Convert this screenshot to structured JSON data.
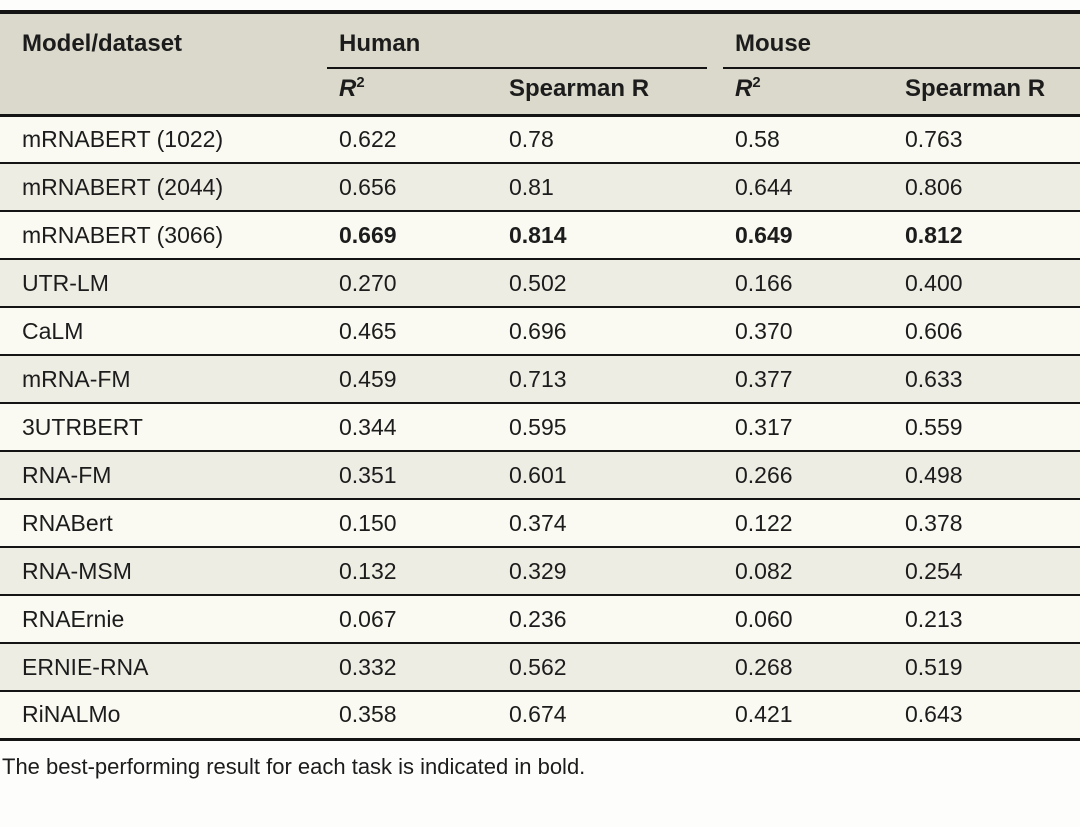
{
  "table": {
    "header": {
      "model_col": "Model/dataset",
      "groups": [
        {
          "label": "Human"
        },
        {
          "label": "Mouse"
        }
      ],
      "subheaders": [
        {
          "base": "R",
          "sup": "2"
        },
        {
          "label": "Spearman R"
        },
        {
          "base": "R",
          "sup": "2"
        },
        {
          "label": "Spearman R"
        }
      ]
    },
    "rows": [
      {
        "model": "mRNABERT (1022)",
        "values": [
          "0.622",
          "0.78",
          "0.58",
          "0.763"
        ],
        "bold_values": false
      },
      {
        "model": "mRNABERT (2044)",
        "values": [
          "0.656",
          "0.81",
          "0.644",
          "0.806"
        ],
        "bold_values": false
      },
      {
        "model": "mRNABERT (3066)",
        "values": [
          "0.669",
          "0.814",
          "0.649",
          "0.812"
        ],
        "bold_values": true
      },
      {
        "model": "UTR-LM",
        "values": [
          "0.270",
          "0.502",
          "0.166",
          "0.400"
        ],
        "bold_values": false
      },
      {
        "model": "CaLM",
        "values": [
          "0.465",
          "0.696",
          "0.370",
          "0.606"
        ],
        "bold_values": false
      },
      {
        "model": "mRNA-FM",
        "values": [
          "0.459",
          "0.713",
          "0.377",
          "0.633"
        ],
        "bold_values": false
      },
      {
        "model": "3UTRBERT",
        "values": [
          "0.344",
          "0.595",
          "0.317",
          "0.559"
        ],
        "bold_values": false
      },
      {
        "model": "RNA-FM",
        "values": [
          "0.351",
          "0.601",
          "0.266",
          "0.498"
        ],
        "bold_values": false
      },
      {
        "model": "RNABert",
        "values": [
          "0.150",
          "0.374",
          "0.122",
          "0.378"
        ],
        "bold_values": false
      },
      {
        "model": "RNA-MSM",
        "values": [
          "0.132",
          "0.329",
          "0.082",
          "0.254"
        ],
        "bold_values": false
      },
      {
        "model": "RNAErnie",
        "values": [
          "0.067",
          "0.236",
          "0.060",
          "0.213"
        ],
        "bold_values": false
      },
      {
        "model": "ERNIE-RNA",
        "values": [
          "0.332",
          "0.562",
          "0.268",
          "0.519"
        ],
        "bold_values": false
      },
      {
        "model": "RiNALMo",
        "values": [
          "0.358",
          "0.674",
          "0.421",
          "0.643"
        ],
        "bold_values": false
      }
    ],
    "footnote": "The best-performing result for each task is indicated in bold."
  },
  "colors": {
    "header_bg": "#dbd9cb",
    "row_light": "#fafaf2",
    "row_dark": "#eeede4",
    "border": "#141414",
    "text": "#1c1c1c"
  }
}
